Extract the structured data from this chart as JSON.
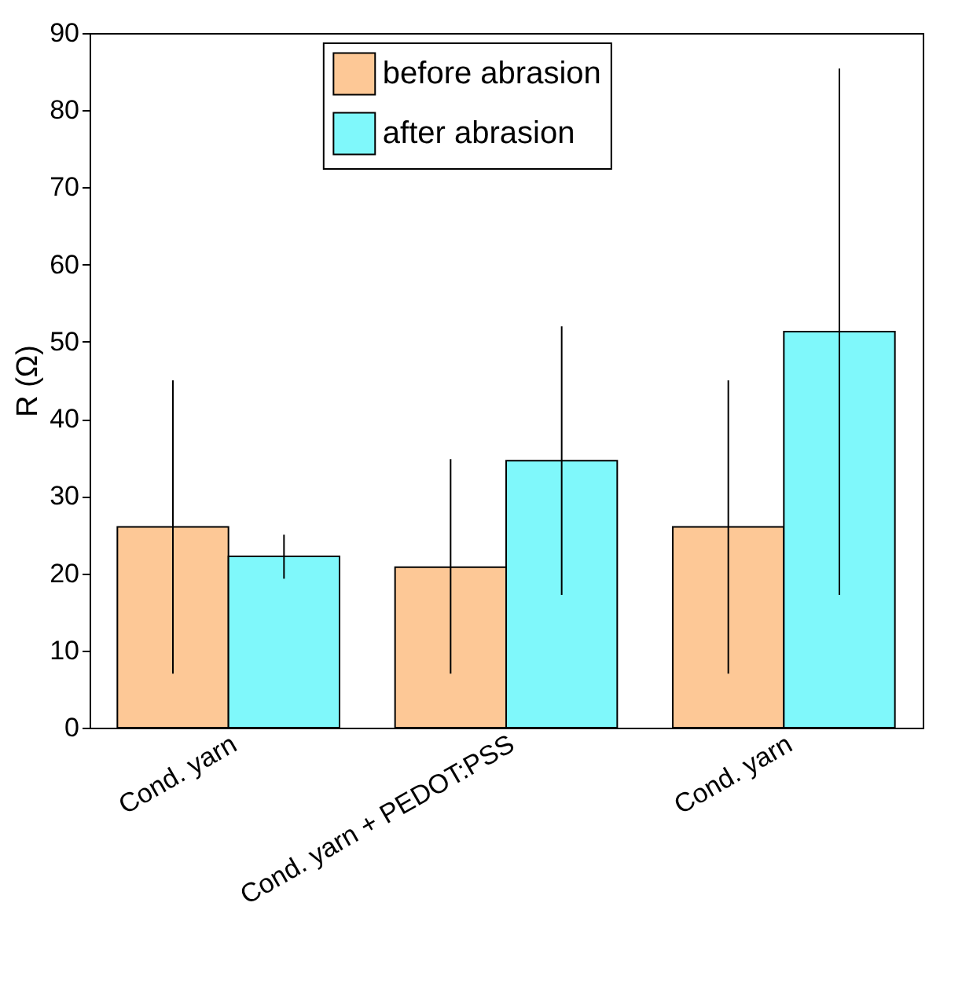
{
  "chart_data": {
    "type": "bar",
    "ylabel": "R (Ω)",
    "categories": [
      "Cond. yarn",
      "Cond. yarn + PEDOT:PSS",
      "Cond. yarn"
    ],
    "series": [
      {
        "name": "before abrasion",
        "color": "#fdc896",
        "values": [
          26,
          20.8,
          26
        ],
        "errors": [
          [
            7,
            45
          ],
          [
            7,
            34.8
          ],
          [
            7,
            45
          ]
        ]
      },
      {
        "name": "after abrasion",
        "color": "#7ff8fb",
        "values": [
          22.2,
          34.6,
          51.3
        ],
        "errors": [
          [
            19.3,
            25
          ],
          [
            17.2,
            52
          ],
          [
            17.2,
            85.4
          ]
        ]
      }
    ],
    "ylim": [
      0,
      90
    ],
    "yticks": [
      0,
      10,
      20,
      30,
      40,
      50,
      60,
      70,
      80,
      90
    ],
    "legend": "top",
    "grid": false
  }
}
